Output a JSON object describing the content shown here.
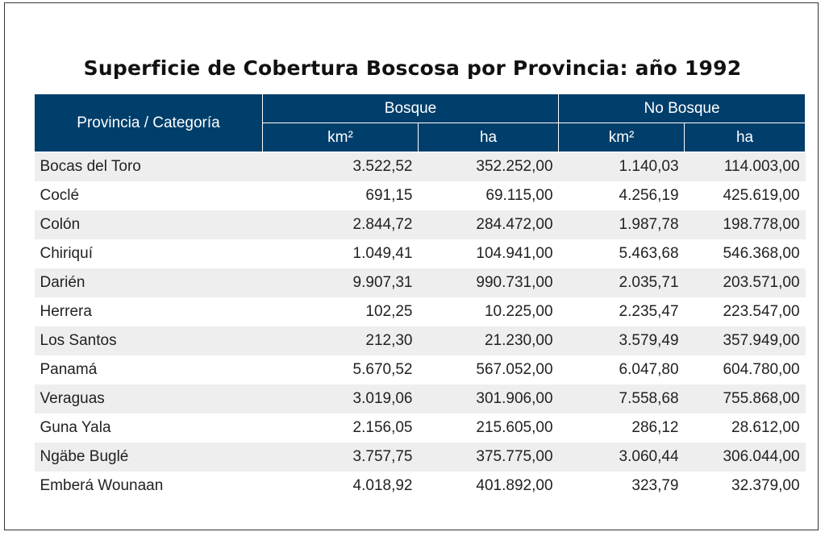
{
  "title": "Superficie de Cobertura Boscosa por Provincia: año 1992",
  "headers": {
    "category": "Provincia / Categoría",
    "bosque": "Bosque",
    "no_bosque": "No Bosque",
    "km2": "km²",
    "ha": "ha"
  },
  "rows": [
    {
      "provincia": "Bocas del Toro",
      "bosque_km2": "3.522,52",
      "bosque_ha": "352.252,00",
      "nobosque_km2": "1.140,03",
      "nobosque_ha": "114.003,00"
    },
    {
      "provincia": "Coclé",
      "bosque_km2": "691,15",
      "bosque_ha": "69.115,00",
      "nobosque_km2": "4.256,19",
      "nobosque_ha": "425.619,00"
    },
    {
      "provincia": "Colón",
      "bosque_km2": "2.844,72",
      "bosque_ha": "284.472,00",
      "nobosque_km2": "1.987,78",
      "nobosque_ha": "198.778,00"
    },
    {
      "provincia": "Chiriquí",
      "bosque_km2": "1.049,41",
      "bosque_ha": "104.941,00",
      "nobosque_km2": "5.463,68",
      "nobosque_ha": "546.368,00"
    },
    {
      "provincia": "Darién",
      "bosque_km2": "9.907,31",
      "bosque_ha": "990.731,00",
      "nobosque_km2": "2.035,71",
      "nobosque_ha": "203.571,00"
    },
    {
      "provincia": "Herrera",
      "bosque_km2": "102,25",
      "bosque_ha": "10.225,00",
      "nobosque_km2": "2.235,47",
      "nobosque_ha": "223.547,00"
    },
    {
      "provincia": "Los Santos",
      "bosque_km2": "212,30",
      "bosque_ha": "21.230,00",
      "nobosque_km2": "3.579,49",
      "nobosque_ha": "357.949,00"
    },
    {
      "provincia": "Panamá",
      "bosque_km2": "5.670,52",
      "bosque_ha": "567.052,00",
      "nobosque_km2": "6.047,80",
      "nobosque_ha": "604.780,00"
    },
    {
      "provincia": "Veraguas",
      "bosque_km2": "3.019,06",
      "bosque_ha": "301.906,00",
      "nobosque_km2": "7.558,68",
      "nobosque_ha": "755.868,00"
    },
    {
      "provincia": "Guna Yala",
      "bosque_km2": "2.156,05",
      "bosque_ha": "215.605,00",
      "nobosque_km2": "286,12",
      "nobosque_ha": "28.612,00"
    },
    {
      "provincia": "Ngäbe Buglé",
      "bosque_km2": "3.757,75",
      "bosque_ha": "375.775,00",
      "nobosque_km2": "3.060,44",
      "nobosque_ha": "306.044,00"
    },
    {
      "provincia": "Emberá Wounaan",
      "bosque_km2": "4.018,92",
      "bosque_ha": "401.892,00",
      "nobosque_km2": "323,79",
      "nobosque_ha": "32.379,00"
    }
  ]
}
